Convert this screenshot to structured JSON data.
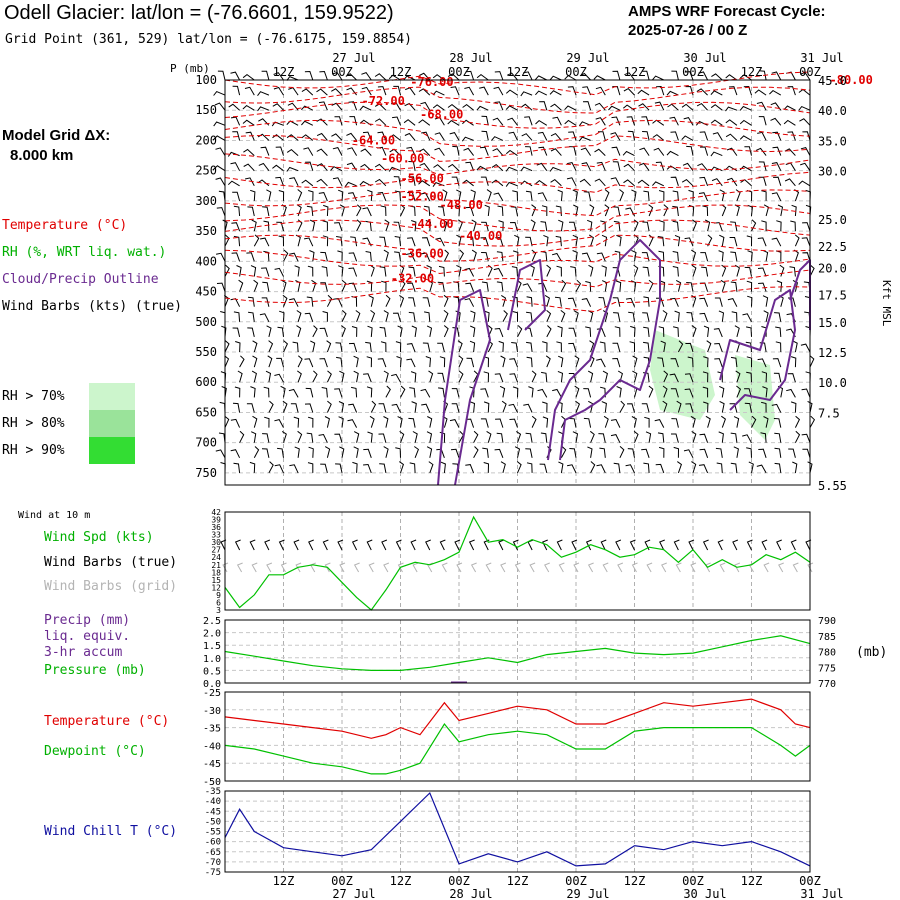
{
  "header": {
    "title": "Odell Glacier:  lat/lon = (-76.6601, 159.9522)",
    "subtitle": "Grid Point (361, 529) lat/lon = (-76.6175, 159.8854)",
    "cycle_line1": "AMPS WRF Forecast Cycle:",
    "cycle_line2": "2025-07-26 / 00  Z",
    "grid_label1": "Model Grid ΔX:",
    "grid_label2": "8.000 km"
  },
  "legend_upper": {
    "temperature": "Temperature (°C)",
    "rh": "RH (%, WRT liq. wat.)",
    "cloud": "Cloud/Precip Outline",
    "wind": "Wind Barbs (kts) (true)",
    "rh70": "RH > 70%",
    "rh80": "RH > 80%",
    "rh90": "RH > 90%"
  },
  "legend_wind10": {
    "heading": "Wind at 10 m",
    "speed": "Wind Spd (kts)",
    "barbs_true": "Wind Barbs (true)",
    "barbs_grid": "Wind Barbs (grid)"
  },
  "legend_precip": {
    "line1": "Precip (mm)",
    "line2": "liq. equiv.",
    "line3": "3-hr accum",
    "line4": "Pressure (mb)"
  },
  "legend_temp": {
    "temperature": "Temperature (°C)",
    "dewpoint": "Dewpoint (°C)"
  },
  "legend_chill": {
    "label": "Wind Chill T (°C)"
  },
  "colors": {
    "temperature": "#e00000",
    "rh": "#00c000",
    "cloud": "#6a2a90",
    "wind_chill": "#1010a0",
    "grid_barbs": "#b4b4b4",
    "rh70": "#ccf5cc",
    "rh80": "#9ae39a",
    "rh90": "#33dd33"
  },
  "chart_data": [
    {
      "type": "line",
      "panel": "upper-air cross section",
      "yaxis_left_label": "P (mb)",
      "yaxis_left_ticks": [
        100,
        150,
        200,
        250,
        300,
        350,
        400,
        450,
        500,
        550,
        600,
        650,
        700,
        750
      ],
      "yaxis_right_label": "Kft MSL",
      "yaxis_right_ticks": [
        "45.0",
        "40.0",
        "35.0",
        "30.0",
        "25.0",
        "22.5",
        "20.0",
        "17.5",
        "15.0",
        "12.5",
        "10.0",
        "7.5",
        "5.55"
      ],
      "top_time_labels": [
        "12Z",
        "00Z",
        "12Z",
        "00Z",
        "12Z",
        "00Z",
        "12Z",
        "00Z",
        "12Z",
        "00Z"
      ],
      "top_date_labels": [
        "27 Jul",
        "28 Jul",
        "29 Jul",
        "30 Jul",
        "31 Jul"
      ],
      "temperature_contour_labels": [
        {
          "label": "-80.00",
          "t": 62,
          "p": 100
        },
        {
          "label": "-76.00",
          "t": 19,
          "p": 103
        },
        {
          "label": "-72.00",
          "t": 14,
          "p": 135
        },
        {
          "label": "-68.00",
          "t": 20,
          "p": 157
        },
        {
          "label": "-64.00",
          "t": 13,
          "p": 200
        },
        {
          "label": "-60.00",
          "t": 16,
          "p": 230
        },
        {
          "label": "-56.00",
          "t": 18,
          "p": 263
        },
        {
          "label": "-52.00",
          "t": 18,
          "p": 293
        },
        {
          "label": "-48.00",
          "t": 22,
          "p": 307
        },
        {
          "label": "-44.00",
          "t": 19,
          "p": 338
        },
        {
          "label": "-40.00",
          "t": 24,
          "p": 358
        },
        {
          "label": "-36.00",
          "t": 18,
          "p": 387
        },
        {
          "label": "-32.00",
          "t": 17,
          "p": 428
        }
      ]
    },
    {
      "type": "line",
      "panel": "10 m wind",
      "ylim": [
        3,
        42
      ],
      "yticks": [
        3,
        6,
        9,
        12,
        15,
        18,
        21,
        24,
        27,
        30,
        33,
        36,
        39,
        42
      ],
      "times_h": [
        0,
        3,
        6,
        9,
        12,
        15,
        18,
        21,
        24,
        27,
        30,
        33,
        36,
        39,
        42,
        45,
        48,
        51,
        54,
        57,
        60,
        63,
        66,
        69,
        72,
        75,
        78,
        81,
        84,
        87,
        90,
        93,
        96,
        99,
        102,
        105,
        108,
        111,
        114,
        117,
        120
      ],
      "series": [
        {
          "name": "Wind Spd (kts)",
          "values": [
            12,
            4,
            9,
            17,
            17,
            20,
            21,
            20,
            14,
            8,
            3,
            11,
            20,
            22,
            21,
            23,
            26,
            40,
            30,
            31,
            28,
            31,
            29,
            24,
            26,
            29,
            27,
            24,
            25,
            28,
            27,
            22,
            27,
            20,
            23,
            20,
            21,
            25,
            23,
            26,
            22
          ]
        }
      ]
    },
    {
      "type": "line",
      "panel": "precip and pressure",
      "ylim_left": [
        0,
        2.5
      ],
      "yticks_left": [
        "0.0",
        "0.5",
        "1.0",
        "1.5",
        "2.0",
        "2.5"
      ],
      "ylim_right": [
        770,
        790
      ],
      "yticks_right": [
        770,
        775,
        780,
        785,
        790
      ],
      "yaxis_right_label": "(mb)",
      "times_h": [
        0,
        6,
        12,
        18,
        24,
        30,
        36,
        42,
        48,
        54,
        60,
        66,
        72,
        78,
        84,
        90,
        96,
        102,
        108,
        114,
        120
      ],
      "series": [
        {
          "name": "Pressure (mb)",
          "values": [
            780,
            778.5,
            777,
            775.5,
            774.5,
            774,
            774,
            775,
            776.5,
            778,
            776.5,
            779,
            780,
            781,
            779.5,
            779,
            779.5,
            781.5,
            783.5,
            785,
            782.5
          ]
        },
        {
          "name": "Precip (mm)",
          "values": [
            0,
            0,
            0,
            0,
            0,
            0,
            0,
            0,
            0.02,
            0,
            0,
            0,
            0,
            0,
            0,
            0,
            0,
            0,
            0,
            0,
            0
          ]
        }
      ]
    },
    {
      "type": "line",
      "panel": "temperature and dewpoint",
      "ylim": [
        -50,
        -25
      ],
      "yticks": [
        -50,
        -45,
        -40,
        -35,
        -30,
        -25
      ],
      "times_h": [
        0,
        6,
        12,
        18,
        24,
        30,
        33,
        36,
        40,
        45,
        48,
        54,
        60,
        66,
        72,
        78,
        84,
        90,
        96,
        102,
        108,
        114,
        117,
        120
      ],
      "series": [
        {
          "name": "Temperature (°C)",
          "values": [
            -32,
            -33,
            -34,
            -35,
            -36,
            -38,
            -37,
            -35,
            -37,
            -28,
            -33,
            -31,
            -29,
            -30,
            -34,
            -34,
            -31,
            -28,
            -29,
            -28,
            -27,
            -30,
            -34,
            -35
          ]
        },
        {
          "name": "Dewpoint (°C)",
          "values": [
            -40,
            -41,
            -43,
            -45,
            -46,
            -48,
            -48,
            -47,
            -45,
            -34,
            -39,
            -37,
            -36,
            -37,
            -41,
            -41,
            -36,
            -35,
            -35,
            -35,
            -35,
            -40,
            -43,
            -40
          ]
        }
      ]
    },
    {
      "type": "line",
      "panel": "wind chill",
      "ylim": [
        -75,
        -35
      ],
      "yticks": [
        -75,
        -70,
        -65,
        -60,
        -55,
        -50,
        -45,
        -40,
        -35
      ],
      "bottom_time_labels": [
        "12Z",
        "00Z",
        "12Z",
        "00Z",
        "12Z",
        "00Z",
        "12Z",
        "00Z",
        "12Z",
        "00Z"
      ],
      "bottom_date_labels": [
        "27 Jul",
        "28 Jul",
        "29 Jul",
        "30 Jul",
        "31 Jul"
      ],
      "times_h": [
        0,
        3,
        6,
        12,
        18,
        24,
        30,
        36,
        42,
        48,
        54,
        60,
        66,
        72,
        78,
        84,
        90,
        96,
        102,
        108,
        114,
        120
      ],
      "series": [
        {
          "name": "Wind Chill T (°C)",
          "values": [
            -58,
            -44,
            -55,
            -63,
            -65,
            -67,
            -64,
            -50,
            -36,
            -71,
            -66,
            -70,
            -65,
            -72,
            -71,
            -62,
            -64,
            -60,
            -62,
            -60,
            -65,
            -72
          ]
        }
      ]
    }
  ]
}
